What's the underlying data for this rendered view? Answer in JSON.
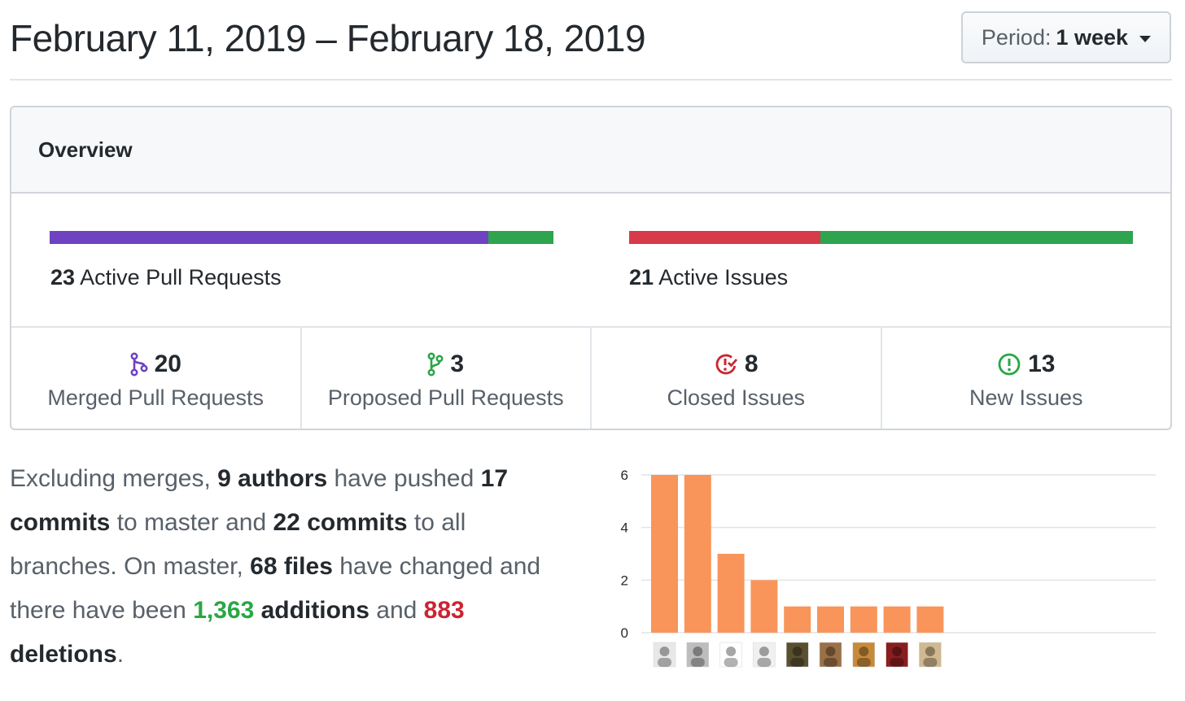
{
  "header": {
    "date_range": "February 11, 2019 – February 18, 2019",
    "period_label": "Period:",
    "period_value": "1 week"
  },
  "overview": {
    "title": "Overview",
    "pull_requests": {
      "count": "23",
      "label": "Active Pull Requests",
      "merged_fraction": 0.87,
      "merged_color": "#6f42c1",
      "open_color": "#2ea44f"
    },
    "issues": {
      "count": "21",
      "label": "Active Issues",
      "closed_fraction": 0.38,
      "closed_color": "#d73a49",
      "open_color": "#2ea44f"
    },
    "stats": [
      {
        "icon": "git-merge-icon",
        "count": "20",
        "label": "Merged Pull Requests",
        "color": "#6f42c1"
      },
      {
        "icon": "git-pull-request-icon",
        "count": "3",
        "label": "Proposed Pull Requests",
        "color": "#28a745"
      },
      {
        "icon": "issue-closed-icon",
        "count": "8",
        "label": "Closed Issues",
        "color": "#cb2431"
      },
      {
        "icon": "issue-opened-icon",
        "count": "13",
        "label": "New Issues",
        "color": "#28a745"
      }
    ]
  },
  "summary": {
    "t1": "Excluding merges, ",
    "authors": "9 authors",
    "t2": " have pushed ",
    "commits_master": "17 commits",
    "t3": " to master and ",
    "commits_all": "22 commits",
    "t4": " to all branches. On master, ",
    "files": "68 files",
    "t5": " have changed and there have been ",
    "additions_num": "1,363",
    "additions_word": " additions",
    "t6": " and ",
    "deletions_num": "883",
    "deletions_word": " deletions",
    "t7": "."
  },
  "chart_data": {
    "type": "bar",
    "values": [
      6,
      6,
      3,
      2,
      1,
      1,
      1,
      1,
      1
    ],
    "yticks": [
      0,
      2,
      4,
      6
    ],
    "ylim": [
      0,
      6
    ],
    "bar_color": "#f9955a",
    "grid": true,
    "avatar_colors": [
      "#e8e8e8",
      "#bdbdbd",
      "#ffffff",
      "#f0f0f0",
      "#5a5030",
      "#9a7048",
      "#c88a3a",
      "#8a1e1e",
      "#d0b890"
    ]
  }
}
